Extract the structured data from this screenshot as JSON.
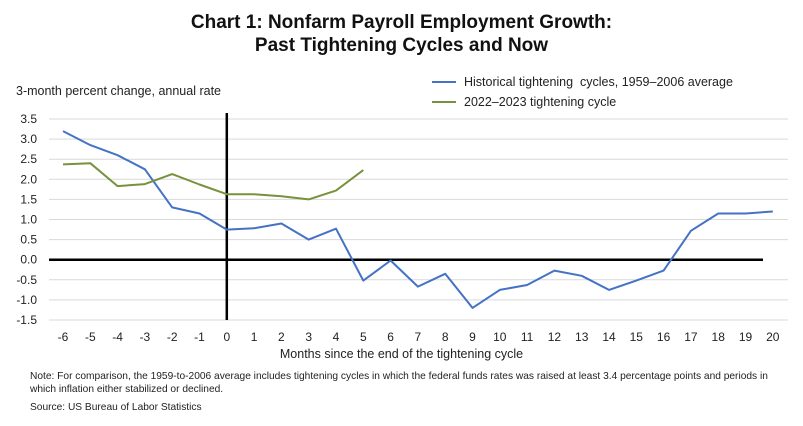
{
  "chart_data": {
    "type": "line",
    "title": "Chart 1: Nonfarm Payroll Employment Growth:",
    "subtitle": "Past Tightening Cycles and Now",
    "ylabel": "3-month percent change, annual rate",
    "xlabel": "Months since the end of the tightening cycle",
    "ylim": [
      -1.5,
      3.5
    ],
    "xlim": [
      -6,
      20
    ],
    "y_ticks": [
      "3.5",
      "3.0",
      "2.5",
      "2.0",
      "1.5",
      "1.0",
      "0.5",
      "0.0",
      "-0.5",
      "-1.0",
      "-1.5"
    ],
    "x_ticks": [
      "-6",
      "-5",
      "-4",
      "-3",
      "-2",
      "-1",
      "0",
      "1",
      "2",
      "3",
      "4",
      "5",
      "6",
      "7",
      "8",
      "9",
      "10",
      "11",
      "12",
      "13",
      "14",
      "15",
      "16",
      "17",
      "18",
      "19",
      "20"
    ],
    "grid": true,
    "legend_position": "top-right",
    "series": [
      {
        "name": "Historical tightening  cycles, 1959–2006 average",
        "color": "#4472c4",
        "x": [
          -6,
          -5,
          -4,
          -3,
          -2,
          -1,
          0,
          1,
          2,
          3,
          4,
          5,
          6,
          7,
          8,
          9,
          10,
          11,
          12,
          13,
          14,
          15,
          16,
          17,
          18,
          19,
          20
        ],
        "values": [
          3.2,
          2.85,
          2.6,
          2.25,
          1.3,
          1.15,
          0.75,
          0.78,
          0.9,
          0.5,
          0.77,
          -0.52,
          -0.02,
          -0.67,
          -0.35,
          -1.2,
          -0.75,
          -0.63,
          -0.27,
          -0.4,
          -0.75,
          -0.52,
          -0.27,
          0.72,
          1.15,
          1.15,
          1.2
        ]
      },
      {
        "name": "2022–2023 tightening cycle",
        "color": "#76923c",
        "x": [
          -6,
          -5,
          -4,
          -3,
          -2,
          -1,
          0,
          1,
          2,
          3,
          4,
          5
        ],
        "values": [
          2.37,
          2.4,
          1.83,
          1.88,
          2.13,
          1.87,
          1.63,
          1.63,
          1.58,
          1.5,
          1.72,
          2.23
        ]
      }
    ]
  },
  "note": "Note: For comparison, the 1959-to-2006 average includes tightening cycles in which the federal funds rates was raised at least 3.4 percentage points and periods in which inflation either stabilized or declined.",
  "source": "Source: US Bureau of Labor Statistics"
}
